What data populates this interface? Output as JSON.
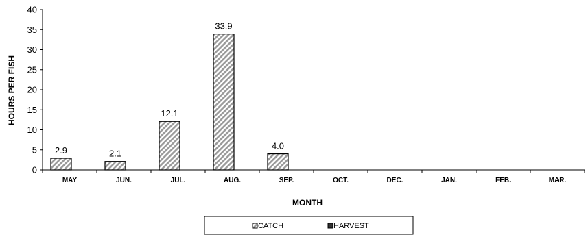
{
  "chart_data": {
    "type": "bar",
    "categories": [
      "MAY",
      "JUN.",
      "JUL.",
      "AUG.",
      "SEP.",
      "OCT.",
      "DEC.",
      "JAN.",
      "FEB.",
      "MAR."
    ],
    "series": [
      {
        "name": "CATCH",
        "values": [
          2.9,
          2.1,
          12.1,
          33.9,
          4.0,
          null,
          null,
          null,
          null,
          null
        ],
        "labels": [
          "2.9",
          "2.1",
          "12.1",
          "33.9",
          "4.0",
          "",
          "",
          "",
          "",
          ""
        ],
        "pattern": "diagonal-hatch"
      },
      {
        "name": "HARVEST",
        "values": [
          null,
          null,
          null,
          null,
          null,
          null,
          null,
          null,
          null,
          null
        ],
        "pattern": "solid-dark"
      }
    ],
    "xlabel": "MONTH",
    "ylabel": "HOURS PER FISH",
    "ylim": [
      0,
      40
    ],
    "yticks": [
      0,
      5,
      10,
      15,
      20,
      25,
      30,
      35,
      40
    ],
    "grid": false,
    "legend_position": "bottom"
  }
}
